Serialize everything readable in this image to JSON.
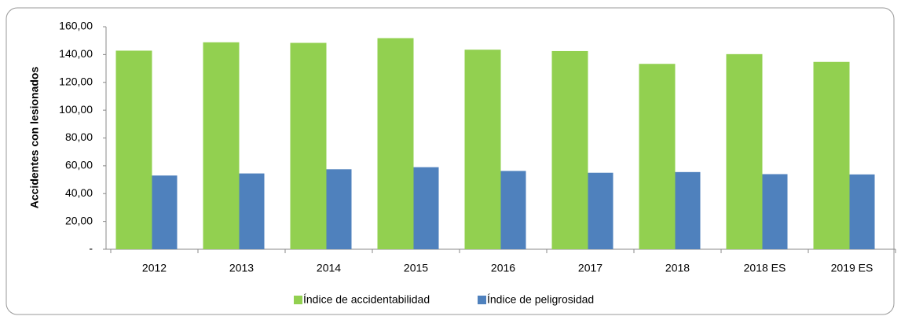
{
  "chart_data": {
    "type": "bar",
    "ylabel": "Accidentes con lesionados",
    "categories": [
      "2012",
      "2013",
      "2014",
      "2015",
      "2016",
      "2017",
      "2018",
      "2018 ES",
      "2019 ES"
    ],
    "series": [
      {
        "name": "Índice de accidentabilidad",
        "color": "#92d050",
        "values": [
          142.8,
          148.8,
          148.4,
          151.8,
          143.5,
          142.5,
          133.3,
          140.3,
          134.7
        ]
      },
      {
        "name": "Índice de peligrosidad",
        "color": "#4f81bd",
        "values": [
          53.0,
          54.5,
          57.5,
          59.0,
          56.3,
          55.0,
          55.5,
          54.0,
          53.8
        ]
      }
    ],
    "ylim": [
      0,
      160
    ],
    "yticks": [
      {
        "value": 0,
        "label": "-"
      },
      {
        "value": 20,
        "label": "20,00"
      },
      {
        "value": 40,
        "label": "40,00"
      },
      {
        "value": 60,
        "label": "60,00"
      },
      {
        "value": 80,
        "label": "80,00"
      },
      {
        "value": 100,
        "label": "100,00"
      },
      {
        "value": 120,
        "label": "120,00"
      },
      {
        "value": 140,
        "label": "140,00"
      },
      {
        "value": 160,
        "label": "160,00"
      }
    ],
    "legend": "bottom"
  }
}
